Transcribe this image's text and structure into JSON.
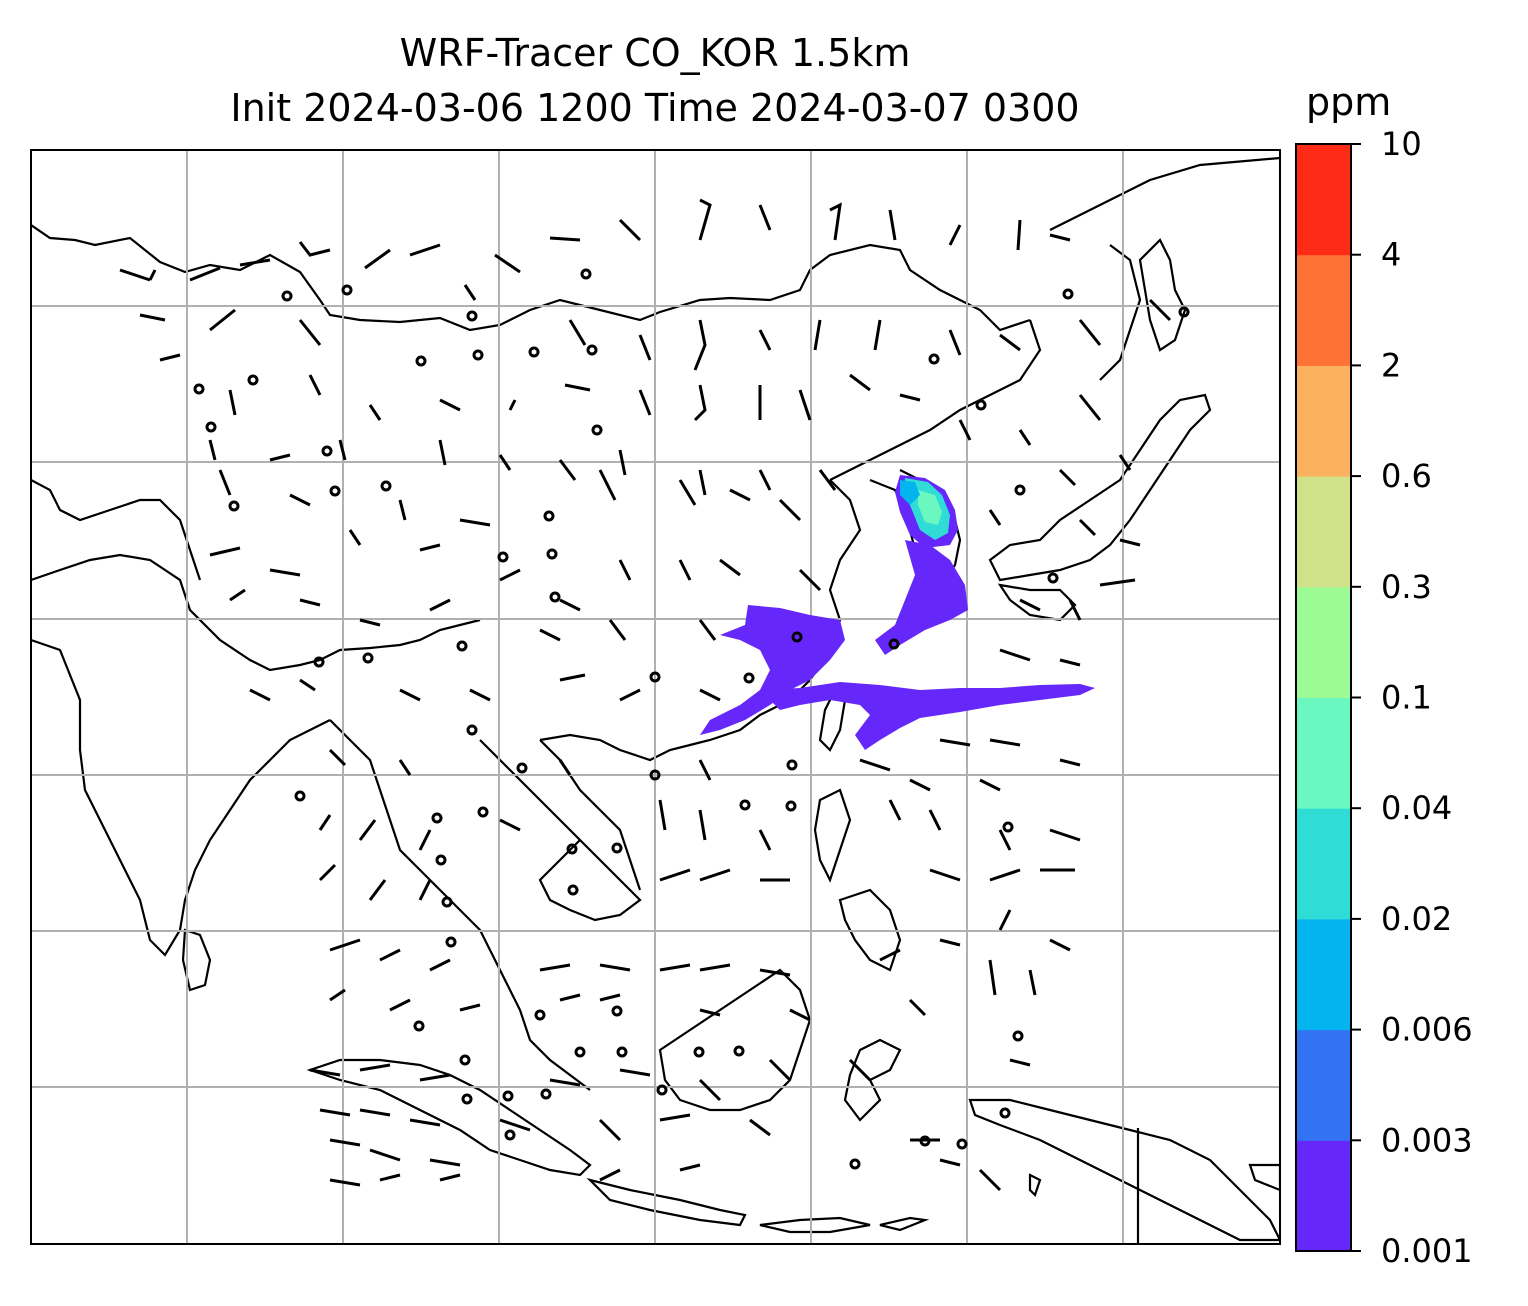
{
  "title": {
    "line1": "WRF-Tracer CO_KOR 1.5km",
    "line2": "Init 2024-03-06 1200 Time 2024-03-07 0300"
  },
  "colorbar": {
    "unit": "ppm",
    "levels": [
      "0.001",
      "0.003",
      "0.006",
      "0.02",
      "0.04",
      "0.1",
      "0.3",
      "0.6",
      "2",
      "4",
      "10"
    ],
    "colors": [
      "#6628fa",
      "#3273f2",
      "#04b4ee",
      "#2fdcd6",
      "#6af8c0",
      "#9dfb95",
      "#d1e18a",
      "#fcb160",
      "#ff7237",
      "#fe2b16"
    ]
  },
  "map": {
    "gridlines": true,
    "wind_barbs": true,
    "tracer": "CO_KOR",
    "plume_color": "#6628fa",
    "plume_core_colors": [
      "#2fdcd6",
      "#04b4ee"
    ]
  }
}
